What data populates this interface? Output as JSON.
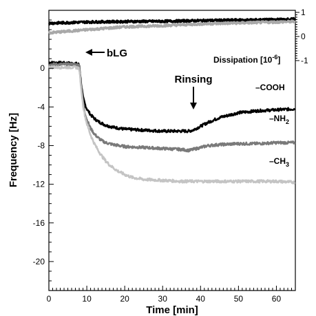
{
  "chart_data": {
    "type": "line",
    "xlabel": "Time [min]",
    "ylabel": "Frequency [Hz]",
    "y2label": "Dissipation [10",
    "y2label_exp": "-6",
    "y2label_end": "]",
    "xlim": [
      0,
      65
    ],
    "ylim": [
      -23,
      6
    ],
    "y2lim": [
      -1,
      1
    ],
    "x_ticks": [
      "0",
      "10",
      "20",
      "30",
      "40",
      "50",
      "60"
    ],
    "y_ticks": [
      "0",
      "-4",
      "-8",
      "-12",
      "-16",
      "-20"
    ],
    "y2_ticks": [
      "1",
      "0",
      "-1"
    ],
    "x_tick_values": [
      0,
      10,
      20,
      30,
      40,
      50,
      60
    ],
    "y_tick_values": [
      0,
      -4,
      -8,
      -12,
      -16,
      -20
    ],
    "y2_tick_values": [
      1,
      0,
      -1
    ],
    "annotations": {
      "blg": "bLG",
      "rinsing": "Rinsing",
      "cooh": "–COOH",
      "nh2": "–NH",
      "nh2_sub": "2",
      "ch3": "–CH",
      "ch3_sub": "3"
    },
    "colors": {
      "cooh": "#000000",
      "nh2": "#7a7a7a",
      "ch3": "#c4c4c4"
    },
    "series": [
      {
        "id": "cooh",
        "color": "#000000",
        "x": [
          0,
          7,
          8,
          8.5,
          9,
          9.5,
          10,
          11,
          12,
          13,
          14,
          15,
          17,
          20,
          25,
          30,
          35,
          37,
          38,
          40,
          42,
          45,
          50,
          55,
          60,
          65
        ],
        "y": [
          0.6,
          0.5,
          0.4,
          -1.5,
          -3.0,
          -3.7,
          -4.2,
          -4.8,
          -5.2,
          -5.5,
          -5.7,
          -5.9,
          -6.1,
          -6.3,
          -6.4,
          -6.5,
          -6.5,
          -6.5,
          -6.4,
          -6.0,
          -5.6,
          -5.1,
          -4.6,
          -4.4,
          -4.3,
          -4.2
        ]
      },
      {
        "id": "nh2",
        "color": "#7a7a7a",
        "x": [
          0,
          7,
          8,
          8.5,
          9,
          9.5,
          10,
          11,
          12,
          13,
          14,
          15,
          17,
          20,
          25,
          30,
          35,
          37,
          38,
          40,
          42,
          45,
          50,
          55,
          60,
          65
        ],
        "y": [
          0.4,
          0.4,
          0.3,
          -1.8,
          -3.5,
          -4.6,
          -5.3,
          -6.2,
          -6.8,
          -7.2,
          -7.5,
          -7.7,
          -7.9,
          -8.1,
          -8.2,
          -8.3,
          -8.4,
          -8.5,
          -8.4,
          -8.2,
          -8.0,
          -7.9,
          -7.8,
          -7.8,
          -7.7,
          -7.7
        ]
      },
      {
        "id": "ch3",
        "color": "#c4c4c4",
        "x": [
          0,
          7,
          8,
          8.5,
          9,
          9.5,
          10,
          11,
          12,
          13,
          14,
          15,
          16,
          18,
          20,
          22,
          25,
          30,
          35,
          40,
          45,
          50,
          55,
          60,
          65
        ],
        "y": [
          0.1,
          0.1,
          0.0,
          -2.0,
          -3.8,
          -4.9,
          -5.7,
          -6.9,
          -7.8,
          -8.5,
          -9.1,
          -9.6,
          -10.0,
          -10.6,
          -11.0,
          -11.3,
          -11.5,
          -11.6,
          -11.7,
          -11.7,
          -11.7,
          -11.7,
          -11.7,
          -11.7,
          -11.8
        ]
      },
      {
        "id": "dissipation-cooh",
        "axis": "y2",
        "color": "#000000",
        "x": [
          0,
          10,
          20,
          30,
          40,
          50,
          60,
          65
        ],
        "y": [
          0.55,
          0.6,
          0.62,
          0.63,
          0.66,
          0.68,
          0.7,
          0.72
        ]
      },
      {
        "id": "dissipation-ch3",
        "axis": "y2",
        "color": "#a9a9a9",
        "x": [
          0,
          10,
          20,
          30,
          40,
          50,
          60,
          65
        ],
        "y": [
          0.15,
          0.28,
          0.4,
          0.45,
          0.52,
          0.56,
          0.6,
          0.62
        ]
      }
    ]
  }
}
